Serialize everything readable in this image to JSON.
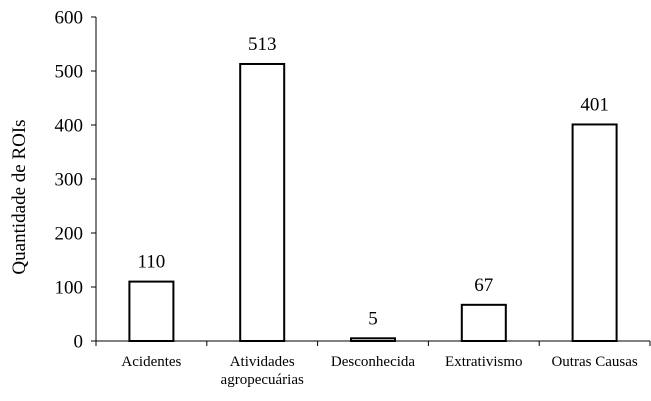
{
  "chart_data": {
    "type": "bar",
    "title": "",
    "xlabel": "",
    "ylabel": "Quantidade de ROIs",
    "ylim": [
      0,
      600
    ],
    "yticks": [
      0,
      100,
      200,
      300,
      400,
      500,
      600
    ],
    "grid": false,
    "categories": [
      [
        "Acidentes"
      ],
      [
        "Atividades",
        "agropecuárias"
      ],
      [
        "Desconhecida"
      ],
      [
        "Extrativismo"
      ],
      [
        "Outras Causas"
      ]
    ],
    "values": [
      110,
      513,
      5,
      67,
      401
    ],
    "data_labels": [
      "110",
      "513",
      "5",
      "67",
      "401"
    ],
    "bar_fill": "#ffffff",
    "bar_stroke": "#000000",
    "axis_color": "#000000"
  }
}
